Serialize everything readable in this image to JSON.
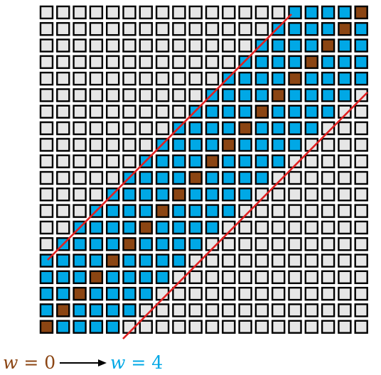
{
  "diagram": {
    "grid_size": 20,
    "bandwidth": 4,
    "colors": {
      "outside": "#e6e6e6",
      "band": "#00a8e6",
      "diagonal": "#8b4513",
      "cell_border": "#000000",
      "boundary_line": "#e02020"
    }
  },
  "caption": {
    "left": {
      "var": "w",
      "op": " = ",
      "val": "0",
      "color": "#8b4513"
    },
    "right": {
      "var": "w",
      "op": " = ",
      "val": "4",
      "color": "#00a8e6"
    },
    "arrow_icon": "right-arrow-icon"
  }
}
